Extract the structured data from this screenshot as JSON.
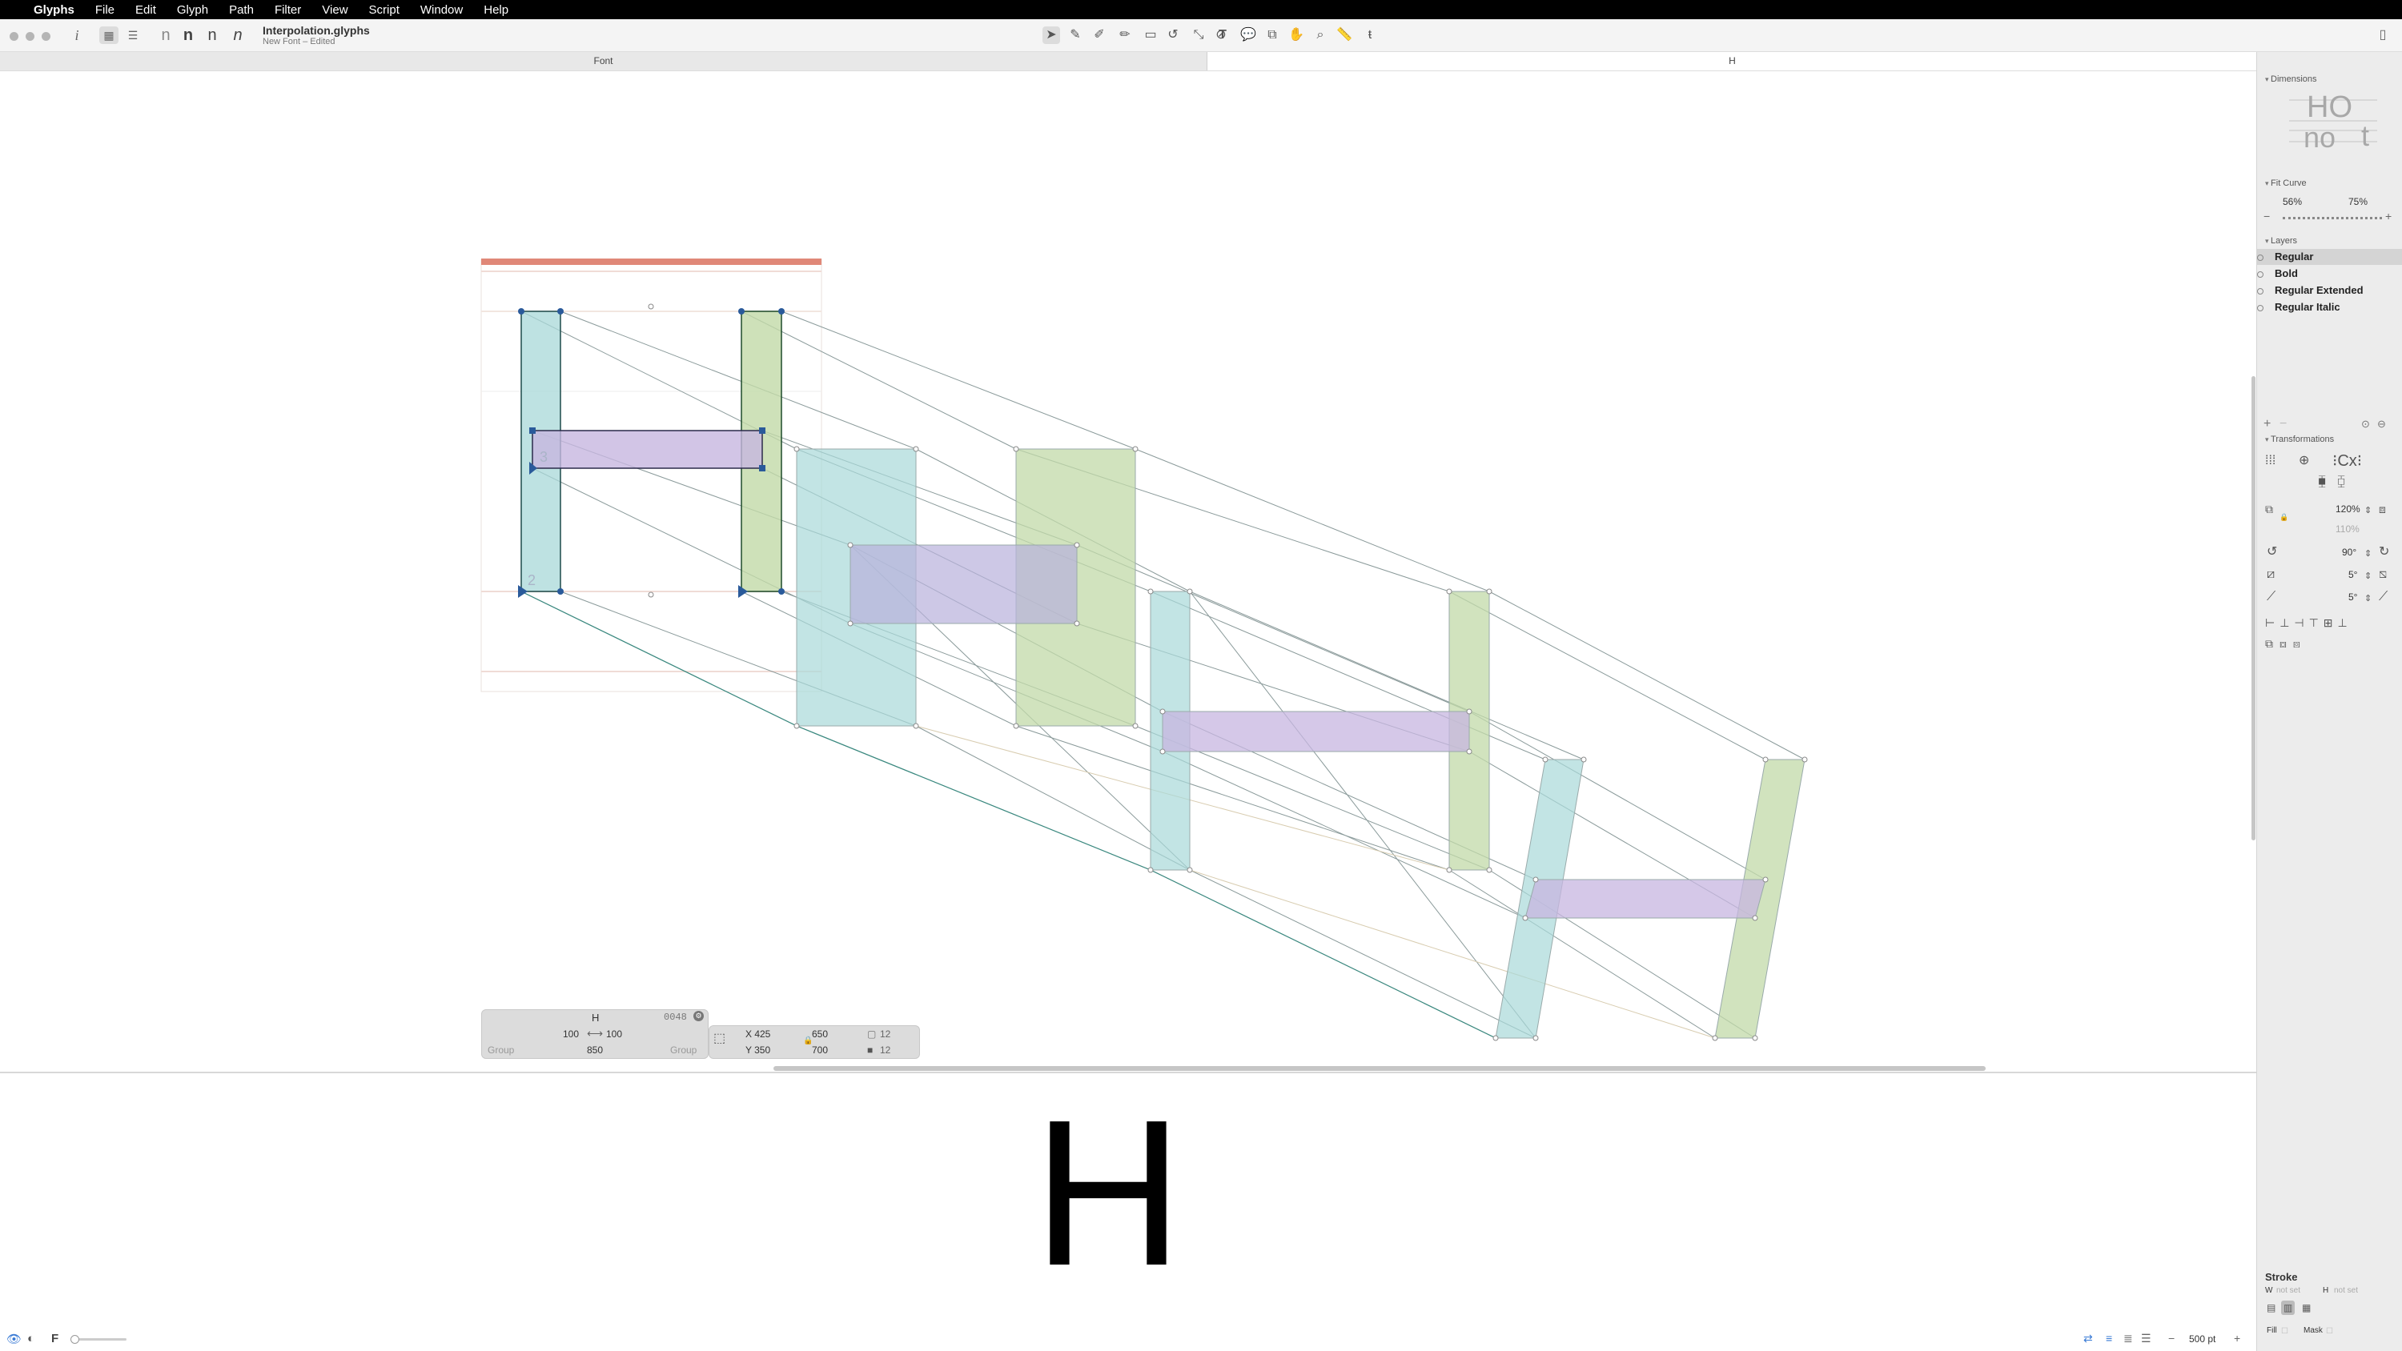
{
  "menubar": {
    "apple": "",
    "app": "Glyphs",
    "items": [
      "File",
      "Edit",
      "Glyph",
      "Path",
      "Filter",
      "View",
      "Script",
      "Window",
      "Help"
    ]
  },
  "toolbar": {
    "doc_title": "Interpolation.glyphs",
    "doc_subtitle": "New Font – Edited",
    "info_icon": "i",
    "sample_glyphs": [
      "n",
      "n",
      "n",
      "n"
    ]
  },
  "tabs": {
    "font": "Font",
    "glyph": "H"
  },
  "glyph_labels": {
    "node_3": "3",
    "node_2": "2"
  },
  "info_box": {
    "glyph_name": "H",
    "unicode": "0048",
    "lsb": "100",
    "rsb": "100",
    "width": "850",
    "group_left": "Group",
    "group_right": "Group",
    "x": "X 425",
    "y": "Y 350",
    "w": "650",
    "h": "700",
    "count_a": "12",
    "count_b": "12"
  },
  "preview": {
    "glyph": "H"
  },
  "bottom": {
    "f_label": "F",
    "size": "500 pt"
  },
  "panel": {
    "dimensions": {
      "title": "Dimensions",
      "sample_top": "HO",
      "sample_bottom_left": "no",
      "sample_bottom_right": "t"
    },
    "fit_curve": {
      "title": "Fit Curve",
      "left": "56%",
      "right": "75%"
    },
    "layers": {
      "title": "Layers",
      "items": [
        {
          "label": "Regular",
          "selected": true
        },
        {
          "label": "Bold",
          "selected": false
        },
        {
          "label": "Regular Extended",
          "selected": false
        },
        {
          "label": "Regular Italic",
          "selected": false
        }
      ]
    },
    "transformations": {
      "title": "Transformations",
      "scale_x": "120%",
      "scale_y": "110%",
      "rotate": "90°",
      "slant_a": "5°",
      "slant_b": "5°"
    },
    "stroke": {
      "title": "Stroke",
      "w_label": "W",
      "w_value": "not set",
      "h_label": "H",
      "h_value": "not set",
      "fill_label": "Fill",
      "mask_label": "Mask"
    }
  },
  "colors": {
    "teal": "#a8d8d8",
    "green": "#c2d9a8",
    "purple": "#c7b6e0",
    "metric_red": "#e08878",
    "node_blue": "#2a5a9a"
  }
}
